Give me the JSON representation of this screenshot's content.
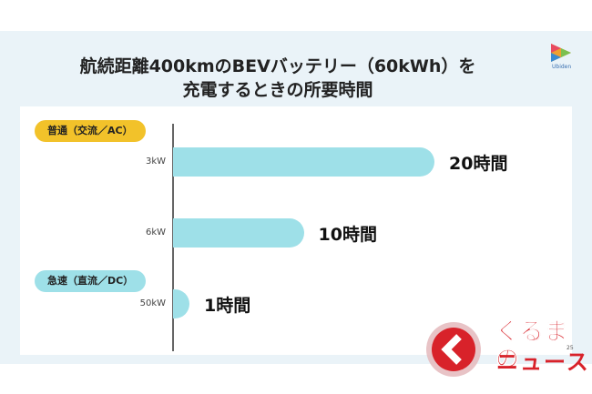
{
  "title_line1": "航続距離400kmのBEVバッテリー（60kWh）を",
  "title_line2": "充電するときの所要時間",
  "logo_text": "Ubiden",
  "page_number": "25",
  "categories": [
    {
      "label": "普通（交流／AC）",
      "color": "#f2c22a"
    },
    {
      "label": "急速（直流／DC）",
      "color": "#9ee0e8"
    }
  ],
  "chart_data": {
    "type": "bar",
    "orientation": "horizontal",
    "categories": [
      "3kW",
      "6kW",
      "50kW"
    ],
    "values": [
      20,
      10,
      1
    ],
    "value_labels": [
      "20時間",
      "10時間",
      "1時間"
    ],
    "unit": "時間",
    "bar_color": "#9ee0e8",
    "xlim": [
      0,
      20
    ]
  },
  "brand": {
    "line1": "くるまの",
    "line2": "ニュース",
    "color": "#d8222a"
  }
}
